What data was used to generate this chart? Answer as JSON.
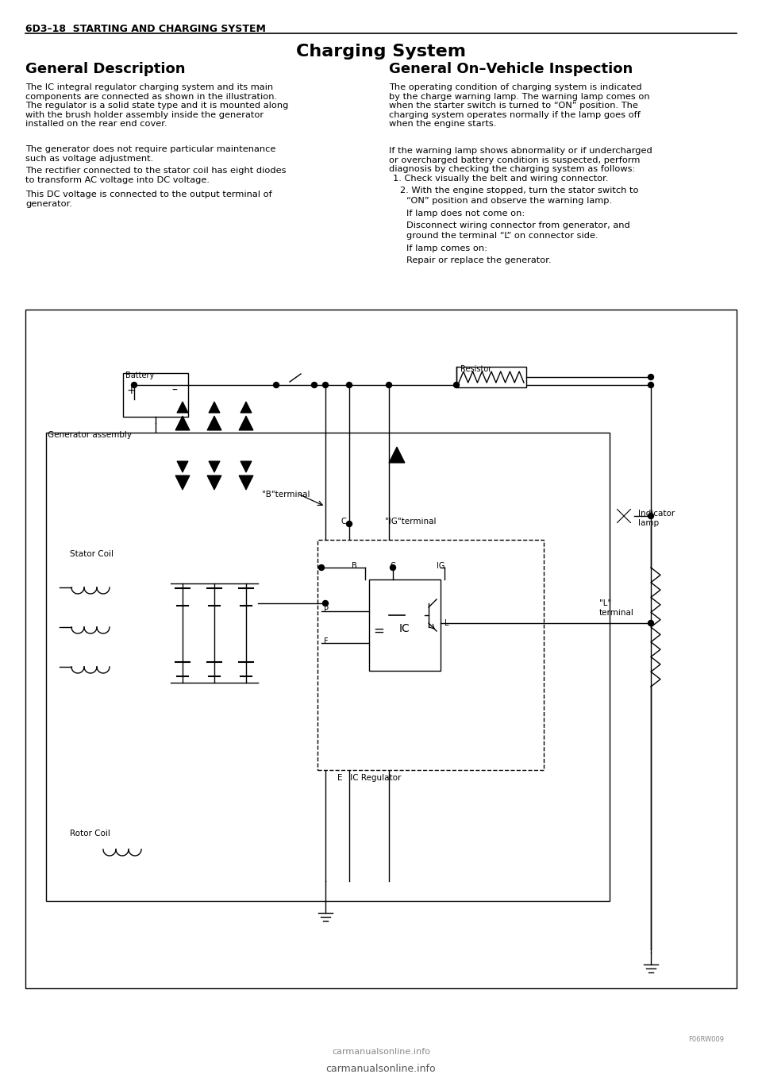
{
  "page_header": "6D3–18  STARTING AND CHARGING SYSTEM",
  "section_title": "Charging System",
  "left_heading": "General Description",
  "left_para1": "The IC integral regulator charging system and its main\ncomponents are connected as shown in the illustration.\nThe regulator is a solid state type and it is mounted along\nwith the brush holder assembly inside the generator\ninstalled on the rear end cover.",
  "left_para2": "The generator does not require particular maintenance\nsuch as voltage adjustment.",
  "left_para3": "The rectifier connected to the stator coil has eight diodes\nto transform AC voltage into DC voltage.",
  "left_para4": "This DC voltage is connected to the output terminal of\ngenerator.",
  "right_heading": "General On–Vehicle Inspection",
  "right_para1": "The operating condition of charging system is indicated\nby the charge warning lamp. The warning lamp comes on\nwhen the starter switch is turned to “ON” position. The\ncharging system operates normally if the lamp goes off\nwhen the engine starts.",
  "right_para2": "If the warning lamp shows abnormality or if undercharged\nor overcharged battery condition is suspected, perform\ndiagnosis by checking the charging system as follows:",
  "num1": "Check visually the belt and wiring connector.",
  "num2a": "With the engine stopped, turn the stator switch to",
  "num2b": "“ON” position and observe the warning lamp.",
  "ind1": "If lamp does not come on:",
  "ind2a": "Disconnect wiring connector from generator, and",
  "ind2b": "ground the terminal “L” on connector side.",
  "ind3": "If lamp comes on:",
  "ind4": "Repair or replace the generator.",
  "watermark": "carmanualsonline.info",
  "figure_label": "F06RW009",
  "bg_color": "#ffffff"
}
